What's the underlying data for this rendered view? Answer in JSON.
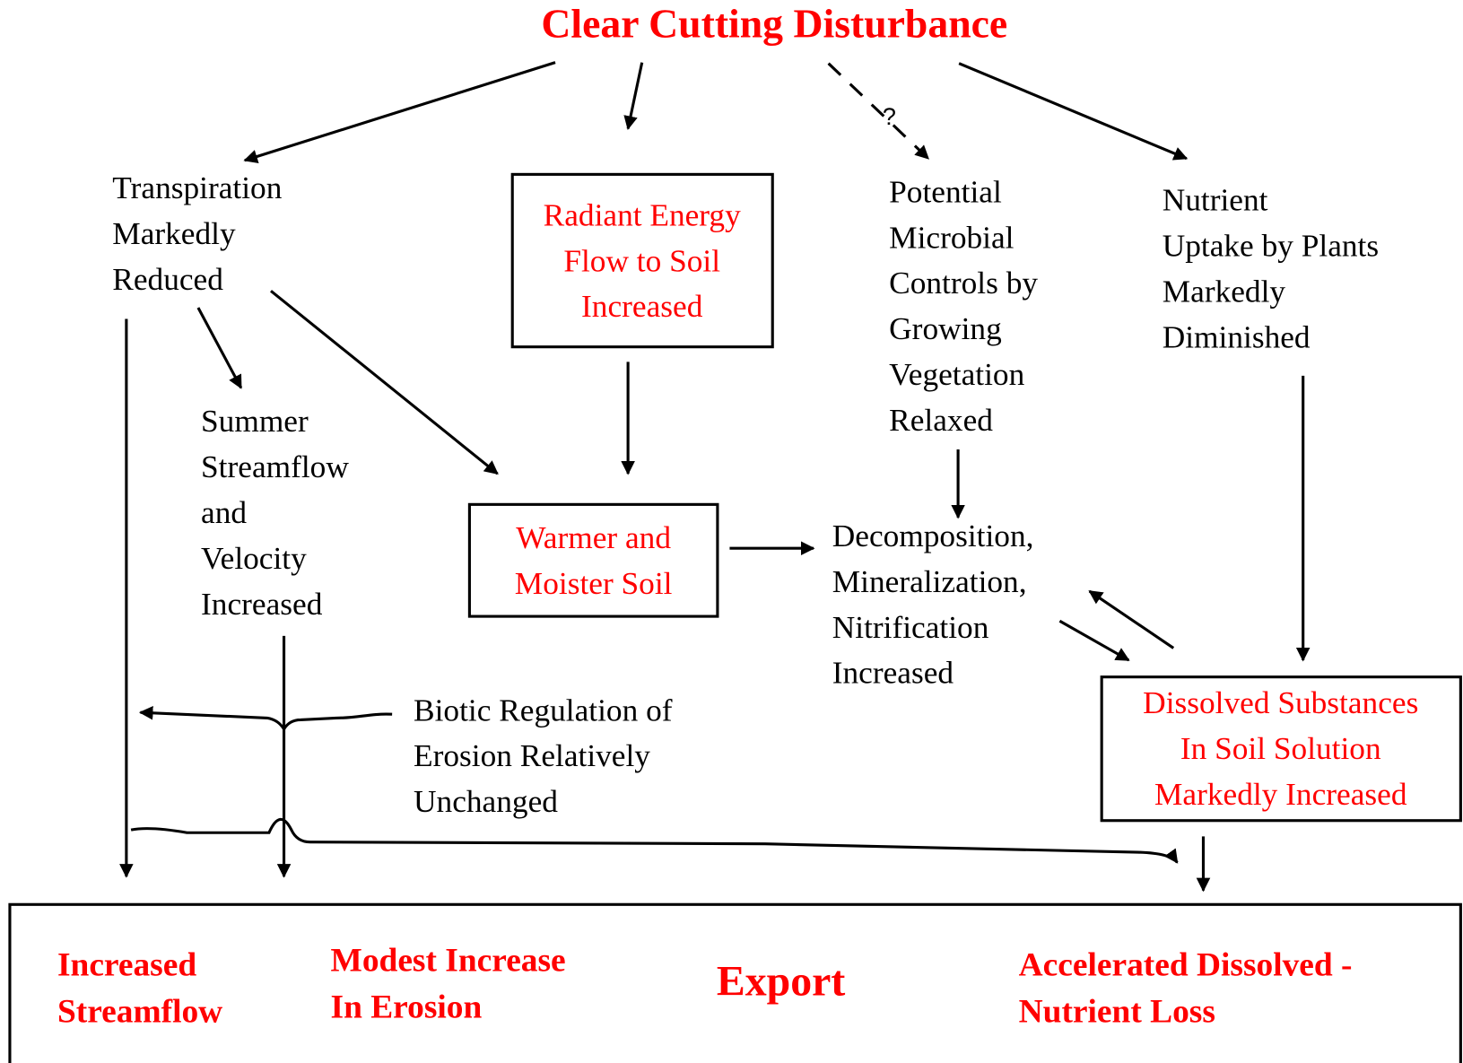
{
  "title": "Clear Cutting Disturbance",
  "question": "?",
  "nodes": [
    {
      "lines": [
        "Transpiration",
        "Markedly",
        "Reduced"
      ]
    },
    {
      "lines": [
        "Radiant Energy",
        "Flow to Soil",
        "Increased"
      ]
    },
    {
      "lines": [
        "Potential",
        "Microbial",
        "Controls by",
        "Growing",
        "Vegetation",
        "Relaxed"
      ]
    },
    {
      "lines": [
        "Nutrient",
        "Uptake by Plants",
        "Markedly",
        "Diminished"
      ]
    },
    {
      "lines": [
        "Summer",
        "Streamflow",
        "and",
        "Velocity",
        "Increased"
      ]
    },
    {
      "lines": [
        "Warmer and",
        "Moister Soil"
      ]
    },
    {
      "lines": [
        "Decomposition,",
        "Mineralization,",
        "Nitrification",
        "Increased"
      ]
    },
    {
      "lines": [
        "Biotic Regulation of",
        "Erosion Relatively",
        "Unchanged"
      ]
    },
    {
      "lines": [
        "Dissolved Substances",
        "In Soil Solution",
        "Markedly Increased"
      ]
    }
  ],
  "export": {
    "label": "Export",
    "items": [
      {
        "lines": [
          "Increased",
          "Streamflow"
        ]
      },
      {
        "lines": [
          "Modest Increase",
          "In Erosion"
        ]
      },
      {
        "lines": [
          "Accelerated Dissolved -",
          "Nutrient Loss"
        ]
      }
    ]
  }
}
